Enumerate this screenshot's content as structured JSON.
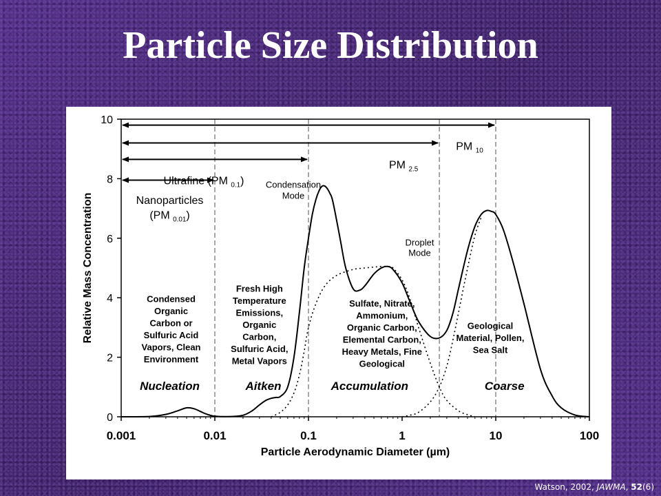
{
  "page": {
    "title": "Particle Size Distribution",
    "citation": {
      "author": "Watson, 2002, ",
      "journal": "JAWMA",
      "sep": ", ",
      "volume": "52",
      "issue": "(6)"
    }
  },
  "chart_data": {
    "type": "line",
    "xlabel": "Particle Aerodynamic Diameter (µm)",
    "ylabel": "Relative Mass Concentration",
    "xscale": "log",
    "xlim": [
      0.001,
      100
    ],
    "ylim": [
      0,
      10
    ],
    "xticks": [
      {
        "value": 0.001,
        "label": "0.001"
      },
      {
        "value": 0.01,
        "label": "0.01"
      },
      {
        "value": 0.1,
        "label": "0.1"
      },
      {
        "value": 1,
        "label": "1"
      },
      {
        "value": 10,
        "label": "10"
      },
      {
        "value": 100,
        "label": "100"
      }
    ],
    "yticks": [
      {
        "value": 0,
        "label": "0"
      },
      {
        "value": 2,
        "label": "2"
      },
      {
        "value": 4,
        "label": "4"
      },
      {
        "value": 6,
        "label": "6"
      },
      {
        "value": 8,
        "label": "8"
      },
      {
        "value": 10,
        "label": "10"
      }
    ],
    "vlines": [
      0.01,
      0.1,
      2.5,
      10
    ],
    "series": [
      {
        "style": "solid",
        "x": [
          0.001,
          0.002,
          0.003,
          0.004,
          0.005,
          0.006,
          0.007,
          0.008,
          0.01,
          0.015,
          0.02,
          0.025,
          0.03,
          0.035,
          0.04,
          0.045,
          0.05,
          0.06,
          0.07,
          0.08,
          0.09,
          0.1,
          0.11,
          0.12,
          0.13,
          0.14,
          0.15,
          0.16,
          0.17,
          0.18,
          0.2,
          0.22,
          0.25,
          0.3,
          0.35,
          0.4,
          0.5,
          0.6,
          0.7,
          0.8,
          1,
          1.2,
          1.5,
          2,
          2.5,
          3,
          3.5,
          4,
          5,
          6,
          7,
          8,
          9,
          10,
          12,
          15,
          20,
          30,
          40,
          50,
          70,
          100
        ],
        "y": [
          0,
          0.01,
          0.08,
          0.2,
          0.3,
          0.27,
          0.18,
          0.1,
          0.02,
          0.01,
          0.05,
          0.2,
          0.4,
          0.55,
          0.62,
          0.65,
          0.68,
          1.0,
          2.0,
          3.5,
          5.0,
          6.0,
          6.8,
          7.3,
          7.6,
          7.75,
          7.75,
          7.65,
          7.5,
          7.3,
          6.6,
          5.9,
          5.0,
          4.3,
          4.25,
          4.4,
          4.8,
          5.0,
          5.05,
          4.95,
          4.5,
          3.9,
          3.2,
          2.7,
          2.65,
          2.9,
          3.5,
          4.3,
          5.6,
          6.4,
          6.8,
          6.93,
          6.9,
          6.8,
          6.3,
          5.3,
          3.8,
          1.6,
          0.7,
          0.3,
          0.06,
          0
        ]
      },
      {
        "style": "dotted",
        "x": [
          0.04,
          0.05,
          0.06,
          0.07,
          0.08,
          0.09,
          0.1,
          0.12,
          0.15,
          0.2,
          0.3,
          0.4,
          0.5,
          0.6,
          0.7,
          0.8,
          1,
          1.2,
          1.5,
          2,
          2.5,
          3,
          4,
          5,
          6
        ],
        "y": [
          0,
          0.15,
          0.4,
          0.8,
          1.4,
          2.2,
          3.0,
          3.8,
          4.4,
          4.75,
          4.95,
          5.0,
          5.03,
          5.05,
          5.05,
          5.0,
          4.6,
          4.0,
          3.0,
          1.8,
          1.0,
          0.55,
          0.2,
          0.07,
          0
        ]
      },
      {
        "style": "dotted",
        "x": [
          1,
          1.2,
          1.5,
          2,
          2.5,
          3,
          3.5,
          4,
          5,
          6,
          7
        ],
        "y": [
          0,
          0.05,
          0.15,
          0.5,
          1.0,
          1.7,
          2.6,
          3.5,
          5.0,
          6.1,
          6.7
        ]
      }
    ],
    "arrows": [
      {
        "from": 0.001,
        "to": 10,
        "y": 9.8,
        "label": "PM",
        "sub": "10"
      },
      {
        "from": 0.001,
        "to": 2.5,
        "y": 9.2,
        "label": "PM",
        "sub": "2.5"
      },
      {
        "from": 0.001,
        "to": 0.1,
        "y": 8.65,
        "label": "Ultrafine (PM",
        "sub": "0.1",
        "tail": ")"
      },
      {
        "from": 0.001,
        "to": 0.01,
        "y": 7.95,
        "label": "",
        "sub": "",
        "tail": ""
      }
    ],
    "annotations": {
      "nanoparticles": [
        "Nanoparticles",
        "(PM ",
        "0.01",
        ")"
      ],
      "condensation_mode": [
        "Condensation",
        "Mode"
      ],
      "droplet_mode": [
        "Droplet",
        "Mode"
      ],
      "nucleation_desc": [
        "Condensed",
        "Organic",
        "Carbon or",
        "Sulfuric Acid",
        "Vapors, Clean",
        "Environment"
      ],
      "aitken_desc": [
        "Fresh High",
        "Temperature",
        "Emissions,",
        "Organic",
        "Carbon,",
        "Sulfuric Acid,",
        "Metal Vapors"
      ],
      "accumulation_desc": [
        "Sulfate, Nitrate,",
        "Ammonium,",
        "Organic Carbon,",
        "Elemental Carbon,",
        "Heavy Metals, Fine",
        "Geological"
      ],
      "coarse_desc": [
        "Geological",
        "Material, Pollen,",
        "Sea Salt"
      ],
      "modes": [
        "Nucleation",
        "Aitken",
        "Accumulation",
        "Coarse"
      ]
    }
  }
}
